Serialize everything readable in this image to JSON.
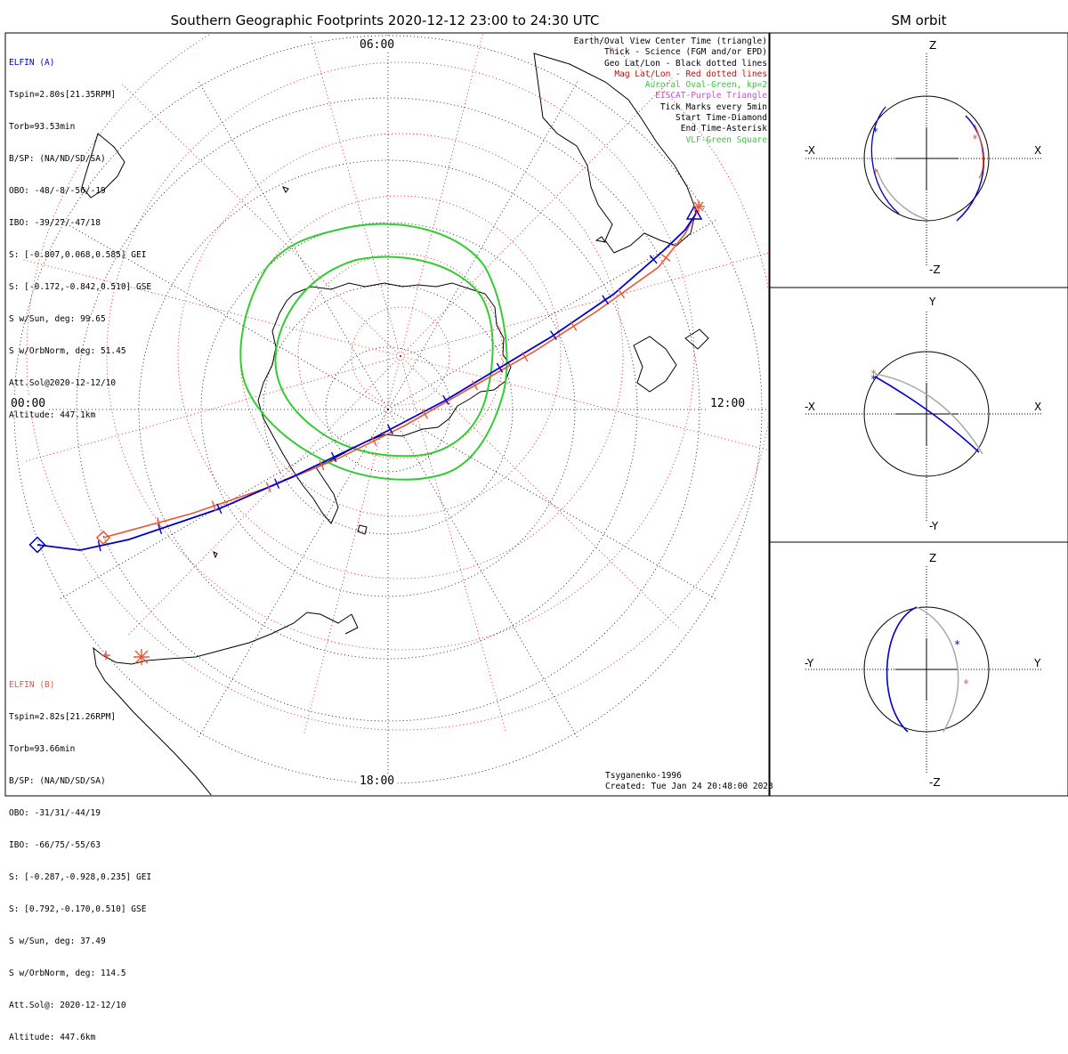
{
  "header": {
    "title": "Southern Geographic Footprints 2020-12-12 23:00 to 24:30 UTC",
    "sm_title": "SM orbit"
  },
  "mlt_labels": {
    "top": "06:00",
    "bottom": "18:00",
    "left": "00:00",
    "right": "12:00"
  },
  "elfin_a": {
    "name": "ELFIN (A)",
    "color": "#0000cc",
    "lines": [
      "Tspin=2.80s[21.35RPM]",
      "Torb=93.53min",
      "B/SP: (NA/ND/SD/SA)",
      "OBO: -48/-8/-56/-19",
      "IBO: -39/27/-47/18",
      "S: [-0.807,0.068,0.585] GEI",
      "S: [-0.172,-0.842,0.510] GSE",
      "S w/Sun, deg: 99.65",
      "S w/OrbNorm, deg: 51.45",
      "Att.Sol@2020-12-12/10",
      "Altitude: 447.1km"
    ]
  },
  "elfin_b": {
    "name": "ELFIN (B)",
    "color": "#ee5533",
    "lines": [
      "Tspin=2.82s[21.26RPM]",
      "Torb=93.66min",
      "B/SP: (NA/ND/SD/SA)",
      "OBO: -31/31/-44/19",
      "IBO: -66/75/-55/63",
      "S: [-0.287,-0.928,0.235] GEI",
      "S: [0.792,-0.170,0.510] GSE",
      "S w/Sun, deg: 37.49",
      "S w/OrbNorm, deg: 114.5",
      "Att.Sol@: 2020-12-12/10",
      "Altitude: 447.6km"
    ]
  },
  "legend": [
    {
      "text": "Earth/Oval View Center Time (triangle)",
      "color": "#000000"
    },
    {
      "text": "Thick - Science (FGM and/or EPD)",
      "color": "#000000"
    },
    {
      "text": "Geo Lat/Lon - Black dotted lines",
      "color": "#000000"
    },
    {
      "text": "Mag Lat/Lon - Red dotted lines",
      "color": "#dd0000"
    },
    {
      "text": "Auroral Oval-Green, kp=2",
      "color": "#33cc33"
    },
    {
      "text": "EISCAT-Purple Triangle",
      "color": "#dd44dd"
    },
    {
      "text": "Tick Marks every 5min",
      "color": "#000000"
    },
    {
      "text": "Start Time-Diamond",
      "color": "#000000"
    },
    {
      "text": "End Time-Asterisk",
      "color": "#000000"
    },
    {
      "text": "VLF-Green Square",
      "color": "#33cc33"
    }
  ],
  "credit": {
    "model": "Tsyganenko-1996",
    "created": "Created: Tue Jan 24 20:48:00 2023"
  },
  "sm_panels": [
    {
      "top": "Z",
      "bottom": "-Z",
      "left": "-X",
      "right": "X"
    },
    {
      "top": "Y",
      "bottom": "-Y",
      "left": "-X",
      "right": "X"
    },
    {
      "top": "Z",
      "bottom": "-Z",
      "left": "-Y",
      "right": "Y"
    }
  ],
  "colors": {
    "elfin_a": "#0000cc",
    "elfin_b": "#ee5533",
    "mag_grid": "#dd0000",
    "geo_grid": "#000000",
    "auroral_oval": "#33cc33",
    "orbit_grey": "#aaaaaa"
  },
  "chart_data": {
    "type": "polar map",
    "title": "Southern Geographic Footprints 2020-12-12 23:00 to 24:30 UTC",
    "mlt_ticks": [
      "00:00",
      "06:00",
      "12:00",
      "18:00"
    ],
    "tracks": [
      {
        "name": "ELFIN (A)",
        "start": "diamond",
        "end": "asterisk",
        "tick_interval_min": 5
      },
      {
        "name": "ELFIN (B)",
        "start": "diamond",
        "end": "asterisk",
        "tick_interval_min": 5
      }
    ],
    "auroral_oval_kp": 2,
    "model": "Tsyganenko-1996"
  }
}
